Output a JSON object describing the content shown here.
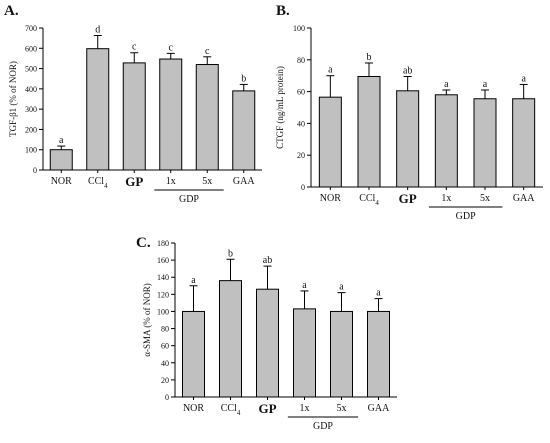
{
  "chart_data": [
    {
      "type": "bar",
      "panel": "A.",
      "ylabel": "TGF-β1 (% of NOR)",
      "ylim": [
        0,
        700
      ],
      "yticks": [
        0,
        100,
        200,
        300,
        400,
        500,
        600,
        700
      ],
      "categories": [
        "NOR",
        "CCl",
        "GP",
        "1x",
        "5x",
        "GAA"
      ],
      "values": [
        100,
        598,
        528,
        547,
        520,
        390
      ],
      "errors": [
        18,
        65,
        50,
        28,
        38,
        32
      ],
      "significance": [
        "a",
        "d",
        "c",
        "c",
        "c",
        "b"
      ],
      "group_label": "GDP"
    },
    {
      "type": "bar",
      "panel": "B.",
      "ylabel": "CTGF (ng/mL protein)",
      "ylim": [
        0,
        100
      ],
      "yticks": [
        0,
        20,
        40,
        60,
        80,
        100
      ],
      "categories": [
        "NOR",
        "CCl",
        "GP",
        "1x",
        "5x",
        "GAA"
      ],
      "values": [
        56.5,
        69.5,
        60.5,
        58.0,
        55.5,
        55.5
      ],
      "errors": [
        13.5,
        8.5,
        9.0,
        3.0,
        5.5,
        9.0
      ],
      "significance": [
        "a",
        "b",
        "ab",
        "a",
        "a",
        "a"
      ],
      "group_label": "GDP"
    },
    {
      "type": "bar",
      "panel": "C.",
      "ylabel": "α-SMA (% of NOR)",
      "ylim": [
        0,
        180
      ],
      "yticks": [
        0,
        20,
        40,
        60,
        80,
        100,
        120,
        140,
        160,
        180
      ],
      "categories": [
        "NOR",
        "CCl",
        "GP",
        "1x",
        "5x",
        "GAA"
      ],
      "values": [
        100,
        136,
        126,
        103,
        100,
        100
      ],
      "errors": [
        30,
        25,
        27,
        21,
        22,
        15
      ],
      "significance": [
        "a",
        "b",
        "ab",
        "a",
        "a",
        "a"
      ],
      "group_label": "GDP"
    }
  ],
  "subscript": "4"
}
